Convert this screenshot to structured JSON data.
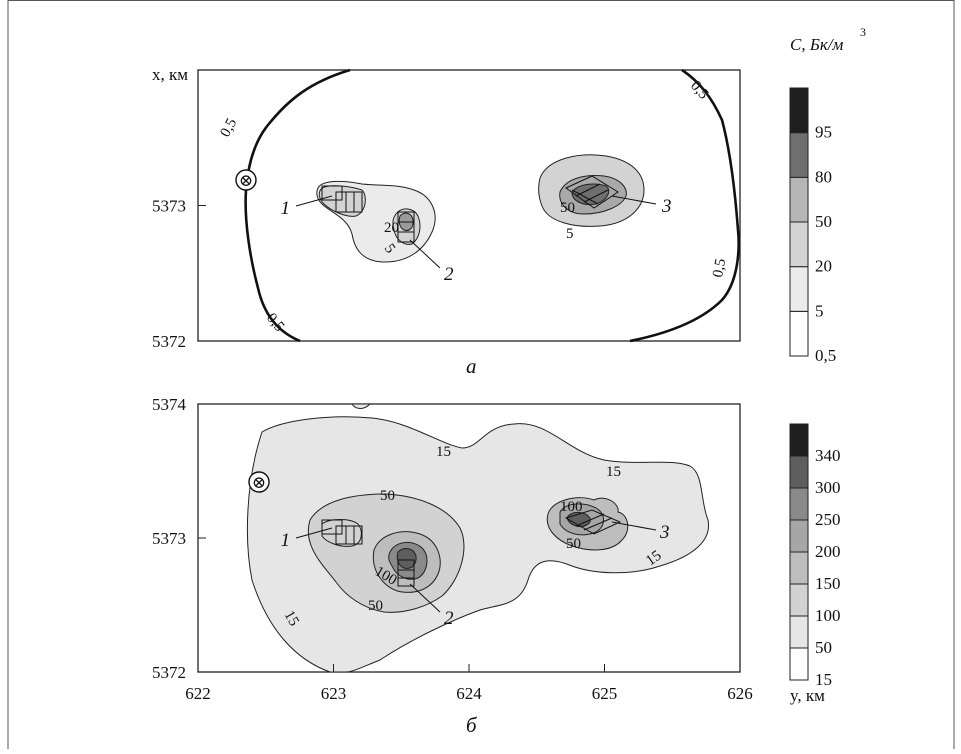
{
  "chart_data": [
    {
      "panel_label": "а",
      "type": "heatmap",
      "subtype": "contour-map",
      "ylabel": "x, км",
      "xlim": [
        622,
        626
      ],
      "ylim": [
        5372,
        5374
      ],
      "y_ticks": [
        "5373",
        "5372"
      ],
      "colorbar": {
        "title": "C, Бк/м",
        "title_superscript": "3",
        "levels": [
          "0,5",
          "5",
          "20",
          "50",
          "80",
          "95"
        ],
        "colors": [
          "#ffffff",
          "#ebebeb",
          "#d3d3d3",
          "#b6b6b6",
          "#6f6f6f",
          "#1e1e1e"
        ]
      },
      "contour_labels": [
        "0,5",
        "0,5",
        "0,5",
        "0,5",
        "5",
        "20",
        "5",
        "50"
      ],
      "sources": [
        "1",
        "2",
        "3"
      ],
      "marker": "⊗"
    },
    {
      "panel_label": "б",
      "type": "heatmap",
      "subtype": "contour-map",
      "xlabel": "y, км",
      "xlim": [
        622,
        626
      ],
      "ylim": [
        5372,
        5374
      ],
      "x_ticks": [
        "622",
        "623",
        "624",
        "625",
        "626"
      ],
      "y_ticks": [
        "5374",
        "5373",
        "5372"
      ],
      "colorbar": {
        "levels": [
          "15",
          "50",
          "100",
          "150",
          "200",
          "250",
          "300",
          "340"
        ],
        "colors": [
          "#ffffff",
          "#e6e6e6",
          "#d2d2d2",
          "#bdbdbd",
          "#a6a6a6",
          "#8a8a8a",
          "#5e5e5e",
          "#1e1e1e"
        ]
      },
      "contour_labels": [
        "15",
        "15",
        "15",
        "15",
        "50",
        "50",
        "100",
        "50",
        "100"
      ],
      "sources": [
        "1",
        "2",
        "3"
      ],
      "marker": "⊗"
    }
  ]
}
